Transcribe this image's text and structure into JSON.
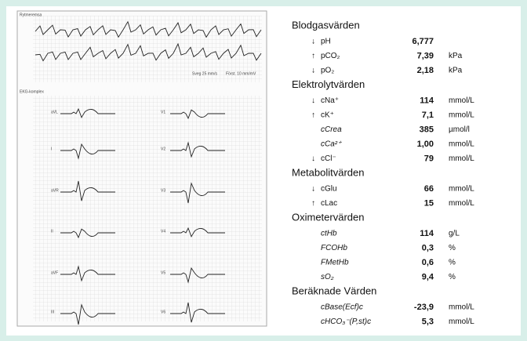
{
  "ecg": {
    "rhythm_title": "Rytmeremsa",
    "complex_title": "EKG-komplex",
    "speed": "Sveg 25 mm/s",
    "gain": "Först. 10 mm/mV",
    "leads_left": [
      "aVL",
      "I",
      "aVR",
      "II",
      "aVF",
      "III"
    ],
    "leads_right": [
      "V1",
      "V2",
      "V3",
      "V4",
      "V5",
      "V6"
    ]
  },
  "results": {
    "sections": [
      {
        "title": "Blodgasvärden",
        "rows": [
          {
            "flag": "↓",
            "name": "pH",
            "value": "6,777"
          },
          {
            "flag": "↑",
            "name": "pCO₂",
            "value": "7,39",
            "unit": "kPa"
          },
          {
            "flag": "↓",
            "name": "pO₂",
            "value": "2,18",
            "unit": "kPa"
          }
        ]
      },
      {
        "title": "Elektrolytvärden",
        "rows": [
          {
            "flag": "↓",
            "name": "cNa⁺",
            "value": "114",
            "unit": "mmol/L"
          },
          {
            "flag": "↑",
            "name": "cK⁺",
            "value": "7,1",
            "unit": "mmol/L"
          },
          {
            "name": "cCrea",
            "value": "385",
            "unit": "µmol/l"
          },
          {
            "name": "cCa²⁺",
            "value": "1,00",
            "unit": "mmol/L"
          },
          {
            "flag": "↓",
            "name": "cCl⁻",
            "value": "79",
            "unit": "mmol/L"
          }
        ]
      },
      {
        "title": "Metabolitvärden",
        "rows": [
          {
            "flag": "↓",
            "name": "cGlu",
            "value": "66",
            "unit": "mmol/L"
          },
          {
            "flag": "↑",
            "name": "cLac",
            "value": "15",
            "unit": "mmol/L"
          }
        ]
      },
      {
        "title": "Oximetervärden",
        "rows": [
          {
            "name": "ctHb",
            "value": "114",
            "unit": "g/L"
          },
          {
            "name": "FCOHb",
            "value": "0,3",
            "unit": "%"
          },
          {
            "name": "FMetHb",
            "value": "0,6",
            "unit": "%"
          },
          {
            "name": "sO₂",
            "value": "9,4",
            "unit": "%"
          }
        ]
      },
      {
        "title": "Beräknade Värden",
        "rows": [
          {
            "name": "cBase(Ecf)c",
            "value": "-23,9",
            "unit": "mmol/L"
          },
          {
            "name": "cHCO₃⁻(P,st)c",
            "value": "5,3",
            "unit": "mmol/L"
          }
        ]
      }
    ]
  }
}
